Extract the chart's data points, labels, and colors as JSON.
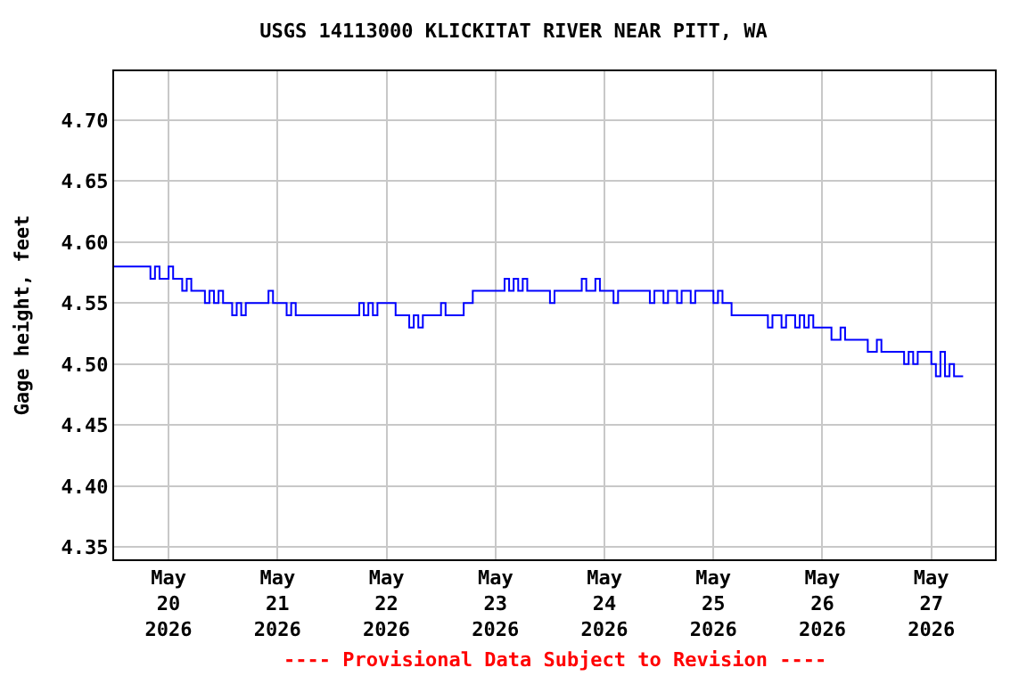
{
  "chart_data": {
    "type": "step",
    "title": "USGS 14113000 KLICKITAT RIVER NEAR PITT, WA",
    "ylabel": "Gage height, feet",
    "annotations": [
      "---- Provisional Data Subject to Revision ----"
    ],
    "x": [
      "2026-05-19T12:00",
      "2026-05-19T20:00",
      "2026-05-19T21:00",
      "2026-05-19T22:00",
      "2026-05-20T00:00",
      "2026-05-20T01:00",
      "2026-05-20T03:00",
      "2026-05-20T04:00",
      "2026-05-20T05:00",
      "2026-05-20T08:00",
      "2026-05-20T09:00",
      "2026-05-20T10:00",
      "2026-05-20T11:00",
      "2026-05-20T12:00",
      "2026-05-20T14:00",
      "2026-05-20T15:00",
      "2026-05-20T16:00",
      "2026-05-20T17:00",
      "2026-05-20T22:00",
      "2026-05-20T23:00",
      "2026-05-21T02:00",
      "2026-05-21T03:00",
      "2026-05-21T04:00",
      "2026-05-21T18:00",
      "2026-05-21T19:00",
      "2026-05-21T20:00",
      "2026-05-21T21:00",
      "2026-05-21T22:00",
      "2026-05-22T02:00",
      "2026-05-22T05:00",
      "2026-05-22T06:00",
      "2026-05-22T07:00",
      "2026-05-22T08:00",
      "2026-05-22T12:00",
      "2026-05-22T13:00",
      "2026-05-22T17:00",
      "2026-05-22T19:00",
      "2026-05-23T02:00",
      "2026-05-23T03:00",
      "2026-05-23T04:00",
      "2026-05-23T05:00",
      "2026-05-23T06:00",
      "2026-05-23T07:00",
      "2026-05-23T12:00",
      "2026-05-23T13:00",
      "2026-05-23T19:00",
      "2026-05-23T20:00",
      "2026-05-23T22:00",
      "2026-05-23T23:00",
      "2026-05-24T02:00",
      "2026-05-24T03:00",
      "2026-05-24T10:00",
      "2026-05-24T11:00",
      "2026-05-24T13:00",
      "2026-05-24T14:00",
      "2026-05-24T16:00",
      "2026-05-24T17:00",
      "2026-05-24T19:00",
      "2026-05-24T20:00",
      "2026-05-25T00:00",
      "2026-05-25T01:00",
      "2026-05-25T02:00",
      "2026-05-25T04:00",
      "2026-05-25T12:00",
      "2026-05-25T13:00",
      "2026-05-25T15:00",
      "2026-05-25T16:00",
      "2026-05-25T18:00",
      "2026-05-25T19:00",
      "2026-05-25T20:00",
      "2026-05-25T21:00",
      "2026-05-25T22:00",
      "2026-05-26T02:00",
      "2026-05-26T04:00",
      "2026-05-26T05:00",
      "2026-05-26T10:00",
      "2026-05-26T12:00",
      "2026-05-26T13:00",
      "2026-05-26T18:00",
      "2026-05-26T19:00",
      "2026-05-26T20:00",
      "2026-05-26T21:00",
      "2026-05-27T00:00",
      "2026-05-27T01:00",
      "2026-05-27T02:00",
      "2026-05-27T03:00",
      "2026-05-27T04:00",
      "2026-05-27T05:00",
      "2026-05-27T07:00"
    ],
    "series": [
      {
        "color": "#0000ff",
        "values": [
          4.58,
          4.57,
          4.58,
          4.57,
          4.58,
          4.57,
          4.56,
          4.57,
          4.56,
          4.55,
          4.56,
          4.55,
          4.56,
          4.55,
          4.54,
          4.55,
          4.54,
          4.55,
          4.56,
          4.55,
          4.54,
          4.55,
          4.54,
          4.55,
          4.54,
          4.55,
          4.54,
          4.55,
          4.54,
          4.53,
          4.54,
          4.53,
          4.54,
          4.55,
          4.54,
          4.55,
          4.56,
          4.57,
          4.56,
          4.57,
          4.56,
          4.57,
          4.56,
          4.55,
          4.56,
          4.57,
          4.56,
          4.57,
          4.56,
          4.55,
          4.56,
          4.55,
          4.56,
          4.55,
          4.56,
          4.55,
          4.56,
          4.55,
          4.56,
          4.55,
          4.56,
          4.55,
          4.54,
          4.53,
          4.54,
          4.53,
          4.54,
          4.53,
          4.54,
          4.53,
          4.54,
          4.53,
          4.52,
          4.53,
          4.52,
          4.51,
          4.52,
          4.51,
          4.5,
          4.51,
          4.5,
          4.51,
          4.5,
          4.49,
          4.51,
          4.49,
          4.5,
          4.49,
          4.49
        ]
      }
    ],
    "xlim": [
      "2026-05-19T12:00",
      "2026-05-27T14:00"
    ],
    "xticks": [
      {
        "value": "2026-05-20",
        "label": "May\n20\n2026"
      },
      {
        "value": "2026-05-21",
        "label": "May\n21\n2026"
      },
      {
        "value": "2026-05-22",
        "label": "May\n22\n2026"
      },
      {
        "value": "2026-05-23",
        "label": "May\n23\n2026"
      },
      {
        "value": "2026-05-24",
        "label": "May\n24\n2026"
      },
      {
        "value": "2026-05-25",
        "label": "May\n25\n2026"
      },
      {
        "value": "2026-05-26",
        "label": "May\n26\n2026"
      },
      {
        "value": "2026-05-27",
        "label": "May\n27\n2026"
      }
    ],
    "ylim": [
      4.34,
      4.74
    ],
    "yticks": [
      {
        "value": 4.35,
        "label": "4.35"
      },
      {
        "value": 4.4,
        "label": "4.40"
      },
      {
        "value": 4.45,
        "label": "4.45"
      },
      {
        "value": 4.5,
        "label": "4.50"
      },
      {
        "value": 4.55,
        "label": "4.55"
      },
      {
        "value": 4.6,
        "label": "4.60"
      },
      {
        "value": 4.65,
        "label": "4.65"
      },
      {
        "value": 4.7,
        "label": "4.70"
      }
    ],
    "grid": true,
    "legend": false
  }
}
